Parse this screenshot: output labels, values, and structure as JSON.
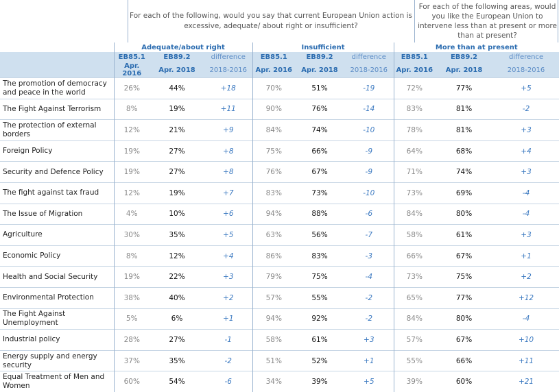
{
  "questions": {
    "main": "For each of the following, would you say that current European Union action is excessive, adequate/ about right or insufficient?",
    "right": "For each of the following areas, would you like the European Union to intervene less than at present or more than at present?"
  },
  "groups": [
    "Adequate/about right",
    "Insufficient",
    "More than at present"
  ],
  "subheaders": {
    "col1_line1": "EB85.1",
    "col1_line2": "Apr. 2016",
    "col2_line1": "EB89.2",
    "col2_line2": "Apr. 2018",
    "col3_line1": "difference",
    "col3_line2": "2018-2016"
  },
  "rows": [
    {
      "label": "The promotion of democracy and peace in the world",
      "a16": "26%",
      "a18": "44%",
      "ad": "+18",
      "i16": "70%",
      "i18": "51%",
      "id": "-19",
      "m16": "72%",
      "m18": "77%",
      "md": "+5"
    },
    {
      "label": "The Fight Against Terrorism",
      "a16": "8%",
      "a18": "19%",
      "ad": "+11",
      "i16": "90%",
      "i18": "76%",
      "id": "-14",
      "m16": "83%",
      "m18": "81%",
      "md": "-2"
    },
    {
      "label": "The protection of external borders",
      "a16": "12%",
      "a18": "21%",
      "ad": "+9",
      "i16": "84%",
      "i18": "74%",
      "id": "-10",
      "m16": "78%",
      "m18": "81%",
      "md": "+3"
    },
    {
      "label": "Foreign Policy",
      "a16": "19%",
      "a18": "27%",
      "ad": "+8",
      "i16": "75%",
      "i18": "66%",
      "id": "-9",
      "m16": "64%",
      "m18": "68%",
      "md": "+4"
    },
    {
      "label": "Security and Defence Policy",
      "a16": "19%",
      "a18": "27%",
      "ad": "+8",
      "i16": "76%",
      "i18": "67%",
      "id": "-9",
      "m16": "71%",
      "m18": "74%",
      "md": "+3"
    },
    {
      "label": "The fight against tax fraud",
      "a16": "12%",
      "a18": "19%",
      "ad": "+7",
      "i16": "83%",
      "i18": "73%",
      "id": "-10",
      "m16": "73%",
      "m18": "69%",
      "md": "-4"
    },
    {
      "label": "The Issue of Migration",
      "a16": "4%",
      "a18": "10%",
      "ad": "+6",
      "i16": "94%",
      "i18": "88%",
      "id": "-6",
      "m16": "84%",
      "m18": "80%",
      "md": "-4"
    },
    {
      "label": "Agriculture",
      "a16": "30%",
      "a18": "35%",
      "ad": "+5",
      "i16": "63%",
      "i18": "56%",
      "id": "-7",
      "m16": "58%",
      "m18": "61%",
      "md": "+3"
    },
    {
      "label": "Economic Policy",
      "a16": "8%",
      "a18": "12%",
      "ad": "+4",
      "i16": "86%",
      "i18": "83%",
      "id": "-3",
      "m16": "66%",
      "m18": "67%",
      "md": "+1"
    },
    {
      "label": "Health and Social Security",
      "a16": "19%",
      "a18": "22%",
      "ad": "+3",
      "i16": "79%",
      "i18": "75%",
      "id": "-4",
      "m16": "73%",
      "m18": "75%",
      "md": "+2"
    },
    {
      "label": "Environmental Protection",
      "a16": "38%",
      "a18": "40%",
      "ad": "+2",
      "i16": "57%",
      "i18": "55%",
      "id": "-2",
      "m16": "65%",
      "m18": "77%",
      "md": "+12"
    },
    {
      "label": "The Fight Against Unemployment",
      "a16": "5%",
      "a18": "6%",
      "ad": "+1",
      "i16": "94%",
      "i18": "92%",
      "id": "-2",
      "m16": "84%",
      "m18": "80%",
      "md": "-4"
    },
    {
      "label": "Industrial policy",
      "a16": "28%",
      "a18": "27%",
      "ad": "-1",
      "i16": "58%",
      "i18": "61%",
      "id": "+3",
      "m16": "57%",
      "m18": "67%",
      "md": "+10"
    },
    {
      "label": "Energy supply and energy security",
      "a16": "37%",
      "a18": "35%",
      "ad": "-2",
      "i16": "51%",
      "i18": "52%",
      "id": "+1",
      "m16": "55%",
      "m18": "66%",
      "md": "+11"
    },
    {
      "label": "Equal Treatment of Men and Women",
      "a16": "60%",
      "a18": "54%",
      "ad": "-6",
      "i16": "34%",
      "i18": "39%",
      "id": "+5",
      "m16": "39%",
      "m18": "60%",
      "md": "+21"
    }
  ],
  "colors": {
    "accent": "#2b6cb0",
    "header_bg": "#cfe0ef",
    "diff": "#3a78c0"
  }
}
